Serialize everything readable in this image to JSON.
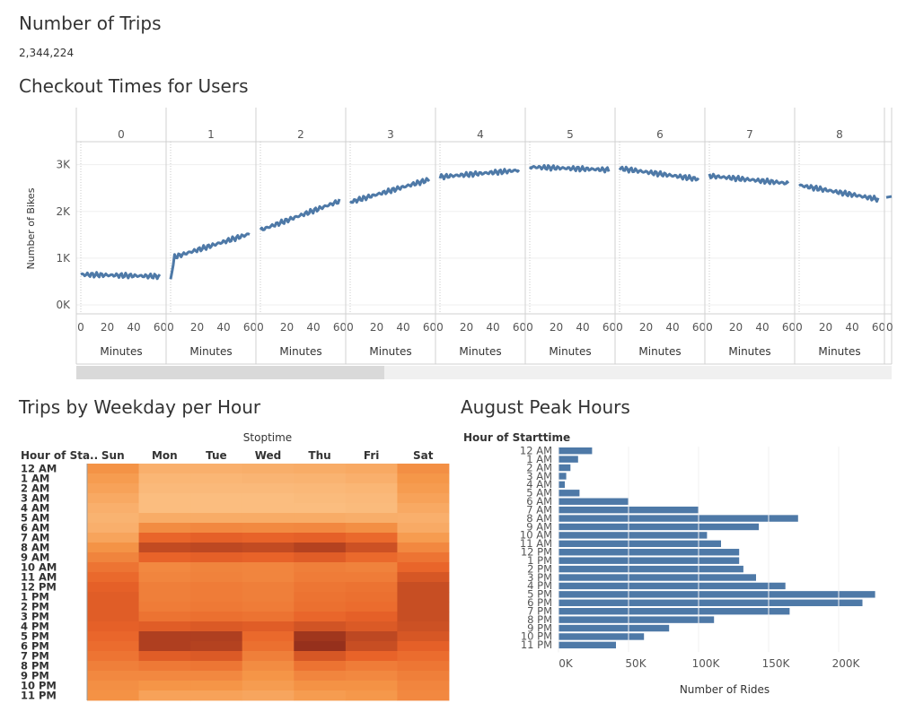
{
  "kpi": {
    "title": "Number of Trips",
    "value": "2,344,224"
  },
  "checkout": {
    "title": "Checkout Times for Users",
    "ylabel": "Number of Bikes",
    "xlabel": "Minutes",
    "y_ticks": [
      "0K",
      "1K",
      "2K",
      "3K"
    ],
    "x_ticks": [
      "0",
      "20",
      "40",
      "60"
    ],
    "color": "#4e79a7"
  },
  "heatmap": {
    "title": "Trips by Weekday per Hour",
    "column_header": "Stoptime",
    "row_header": "Hour of Sta..",
    "days": [
      "Sun",
      "Mon",
      "Tue",
      "Wed",
      "Thu",
      "Fri",
      "Sat"
    ],
    "hours": [
      "12 AM",
      "1 AM",
      "2 AM",
      "3 AM",
      "4 AM",
      "5 AM",
      "6 AM",
      "7 AM",
      "8 AM",
      "9 AM",
      "10 AM",
      "11 AM",
      "12 PM",
      "1 PM",
      "2 PM",
      "3 PM",
      "4 PM",
      "5 PM",
      "6 PM",
      "7 PM",
      "8 PM",
      "9 PM",
      "10 PM",
      "11 PM"
    ]
  },
  "peak": {
    "title": "August Peak Hours",
    "row_header": "Hour of Starttime",
    "xlabel": "Number of Rides",
    "x_ticks": [
      "0K",
      "50K",
      "100K",
      "150K",
      "200K"
    ],
    "color": "#4e79a7"
  },
  "chart_data": [
    {
      "type": "line",
      "title": "Checkout Times for Users",
      "xlabel": "Minutes",
      "ylabel": "Number of Bikes",
      "ylim": [
        0,
        3300
      ],
      "xlim": [
        0,
        60
      ],
      "panels": [
        "0",
        "1",
        "2",
        "3",
        "4",
        "5",
        "6",
        "7",
        "8"
      ],
      "series": [
        {
          "panel": "0",
          "start": 650,
          "end": 610
        },
        {
          "panel": "1",
          "start": 1000,
          "end": 1520
        },
        {
          "panel": "2",
          "start": 1600,
          "end": 2220
        },
        {
          "panel": "3",
          "start": 2200,
          "end": 2680
        },
        {
          "panel": "4",
          "start": 2740,
          "end": 2880
        },
        {
          "panel": "5",
          "start": 2950,
          "end": 2890
        },
        {
          "panel": "6",
          "start": 2920,
          "end": 2690
        },
        {
          "panel": "7",
          "start": 2760,
          "end": 2600
        },
        {
          "panel": "8",
          "start": 2560,
          "end": 2260
        }
      ]
    },
    {
      "type": "heatmap",
      "title": "Trips by Weekday per Hour",
      "x": [
        "Sun",
        "Mon",
        "Tue",
        "Wed",
        "Thu",
        "Fri",
        "Sat"
      ],
      "y": [
        "12 AM",
        "1 AM",
        "2 AM",
        "3 AM",
        "4 AM",
        "5 AM",
        "6 AM",
        "7 AM",
        "8 AM",
        "9 AM",
        "10 AM",
        "11 AM",
        "12 PM",
        "1 PM",
        "2 PM",
        "3 PM",
        "4 PM",
        "5 PM",
        "6 PM",
        "7 PM",
        "8 PM",
        "9 PM",
        "10 PM",
        "11 PM"
      ],
      "values": [
        [
          0.35,
          0.18,
          0.18,
          0.19,
          0.2,
          0.22,
          0.38
        ],
        [
          0.3,
          0.14,
          0.14,
          0.15,
          0.16,
          0.18,
          0.33
        ],
        [
          0.26,
          0.12,
          0.12,
          0.12,
          0.13,
          0.14,
          0.3
        ],
        [
          0.22,
          0.1,
          0.1,
          0.1,
          0.11,
          0.12,
          0.26
        ],
        [
          0.18,
          0.1,
          0.1,
          0.1,
          0.1,
          0.11,
          0.22
        ],
        [
          0.16,
          0.2,
          0.2,
          0.2,
          0.2,
          0.19,
          0.18
        ],
        [
          0.18,
          0.4,
          0.42,
          0.41,
          0.42,
          0.38,
          0.21
        ],
        [
          0.25,
          0.65,
          0.68,
          0.66,
          0.68,
          0.62,
          0.3
        ],
        [
          0.35,
          0.82,
          0.84,
          0.82,
          0.88,
          0.78,
          0.42
        ],
        [
          0.45,
          0.66,
          0.68,
          0.66,
          0.7,
          0.62,
          0.55
        ],
        [
          0.55,
          0.42,
          0.45,
          0.44,
          0.48,
          0.46,
          0.65
        ],
        [
          0.62,
          0.44,
          0.46,
          0.44,
          0.5,
          0.5,
          0.74
        ],
        [
          0.68,
          0.48,
          0.5,
          0.48,
          0.54,
          0.56,
          0.8
        ],
        [
          0.7,
          0.48,
          0.5,
          0.48,
          0.56,
          0.58,
          0.8
        ],
        [
          0.7,
          0.5,
          0.52,
          0.5,
          0.58,
          0.6,
          0.8
        ],
        [
          0.7,
          0.56,
          0.58,
          0.56,
          0.64,
          0.68,
          0.8
        ],
        [
          0.68,
          0.7,
          0.72,
          0.7,
          0.76,
          0.72,
          0.78
        ],
        [
          0.64,
          0.9,
          0.9,
          0.62,
          0.96,
          0.84,
          0.74
        ],
        [
          0.6,
          0.9,
          0.88,
          0.58,
          1.0,
          0.8,
          0.68
        ],
        [
          0.55,
          0.7,
          0.72,
          0.48,
          0.74,
          0.66,
          0.6
        ],
        [
          0.48,
          0.52,
          0.54,
          0.4,
          0.56,
          0.5,
          0.54
        ],
        [
          0.42,
          0.42,
          0.42,
          0.34,
          0.44,
          0.42,
          0.48
        ],
        [
          0.38,
          0.34,
          0.34,
          0.3,
          0.36,
          0.36,
          0.44
        ],
        [
          0.36,
          0.26,
          0.26,
          0.24,
          0.3,
          0.32,
          0.42
        ]
      ]
    },
    {
      "type": "bar",
      "orientation": "horizontal",
      "title": "August Peak Hours",
      "xlabel": "Number of Rides",
      "ylabel": "Hour of Starttime",
      "xlim": [
        0,
        230000
      ],
      "categories": [
        "12 AM",
        "1 AM",
        "2 AM",
        "3 AM",
        "4 AM",
        "5 AM",
        "6 AM",
        "7 AM",
        "8 AM",
        "9 AM",
        "10 AM",
        "11 AM",
        "12 PM",
        "1 PM",
        "2 PM",
        "3 PM",
        "4 PM",
        "5 PM",
        "6 PM",
        "7 PM",
        "8 PM",
        "9 PM",
        "10 PM",
        "11 PM"
      ],
      "values": [
        24000,
        14000,
        8500,
        5500,
        4500,
        15000,
        50000,
        100000,
        171000,
        143000,
        106000,
        116000,
        129000,
        129000,
        132000,
        141000,
        162000,
        226000,
        217000,
        165000,
        111000,
        79000,
        61000,
        41000
      ]
    }
  ]
}
